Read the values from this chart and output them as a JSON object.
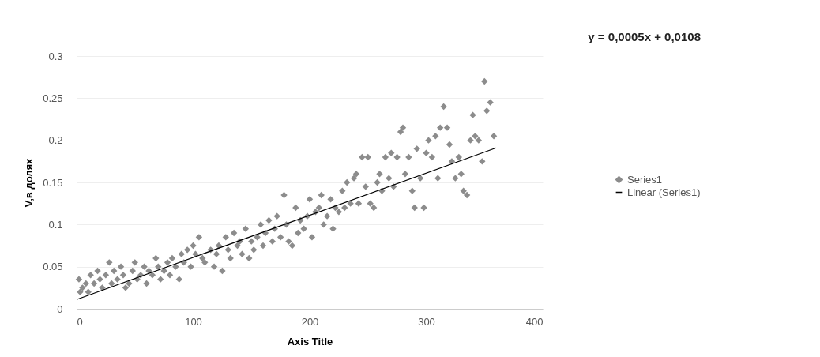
{
  "chart_data": {
    "type": "scatter",
    "xlabel": "Axis Title",
    "ylabel": "V,в долях",
    "annotations": [
      "y = 0,0005x + 0,0108"
    ],
    "xlim": [
      0,
      400
    ],
    "xticks": [
      0,
      100,
      200,
      300,
      400
    ],
    "ylim": [
      0,
      0.3
    ],
    "yticks": [
      0,
      0.05,
      0.1,
      0.15,
      0.2,
      0.25,
      0.3
    ],
    "grid": "y",
    "legend": "right",
    "series": [
      {
        "name": "Series1",
        "color": "#8c8c8c",
        "marker": "diamond",
        "x": [
          2,
          3,
          5,
          8,
          10,
          12,
          15,
          18,
          20,
          22,
          25,
          28,
          30,
          32,
          35,
          38,
          40,
          42,
          45,
          48,
          50,
          52,
          55,
          58,
          60,
          62,
          65,
          68,
          70,
          72,
          75,
          78,
          80,
          82,
          85,
          88,
          90,
          92,
          95,
          98,
          100,
          102,
          105,
          108,
          110,
          115,
          118,
          120,
          122,
          125,
          128,
          130,
          132,
          135,
          138,
          140,
          142,
          145,
          148,
          150,
          152,
          155,
          158,
          160,
          162,
          165,
          168,
          170,
          172,
          175,
          178,
          180,
          182,
          185,
          188,
          190,
          192,
          195,
          198,
          200,
          202,
          205,
          208,
          210,
          212,
          215,
          218,
          220,
          222,
          225,
          228,
          230,
          232,
          235,
          238,
          240,
          242,
          245,
          248,
          250,
          252,
          255,
          258,
          260,
          262,
          265,
          268,
          270,
          272,
          275,
          278,
          280,
          282,
          285,
          288,
          290,
          292,
          295,
          298,
          300,
          302,
          305,
          308,
          310,
          312,
          315,
          318,
          320,
          322,
          325,
          328,
          330,
          332,
          335,
          338,
          340,
          342,
          345,
          348,
          350,
          352,
          355,
          358
        ],
        "values": [
          0.035,
          0.02,
          0.025,
          0.03,
          0.02,
          0.04,
          0.03,
          0.045,
          0.035,
          0.025,
          0.04,
          0.055,
          0.03,
          0.045,
          0.035,
          0.05,
          0.04,
          0.025,
          0.03,
          0.045,
          0.055,
          0.035,
          0.04,
          0.05,
          0.03,
          0.045,
          0.04,
          0.06,
          0.05,
          0.035,
          0.045,
          0.055,
          0.04,
          0.06,
          0.05,
          0.035,
          0.065,
          0.055,
          0.07,
          0.05,
          0.075,
          0.065,
          0.085,
          0.06,
          0.055,
          0.07,
          0.05,
          0.065,
          0.075,
          0.045,
          0.085,
          0.07,
          0.06,
          0.09,
          0.075,
          0.08,
          0.065,
          0.095,
          0.06,
          0.08,
          0.07,
          0.085,
          0.1,
          0.075,
          0.09,
          0.105,
          0.08,
          0.095,
          0.11,
          0.085,
          0.135,
          0.1,
          0.08,
          0.075,
          0.12,
          0.09,
          0.105,
          0.095,
          0.11,
          0.13,
          0.085,
          0.115,
          0.12,
          0.135,
          0.1,
          0.11,
          0.13,
          0.095,
          0.12,
          0.115,
          0.14,
          0.12,
          0.15,
          0.125,
          0.155,
          0.16,
          0.125,
          0.18,
          0.145,
          0.18,
          0.125,
          0.12,
          0.15,
          0.16,
          0.14,
          0.18,
          0.155,
          0.185,
          0.145,
          0.18,
          0.21,
          0.215,
          0.16,
          0.18,
          0.14,
          0.12,
          0.19,
          0.155,
          0.12,
          0.185,
          0.2,
          0.18,
          0.205,
          0.155,
          0.215,
          0.24,
          0.215,
          0.195,
          0.175,
          0.155,
          0.18,
          0.16,
          0.14,
          0.135,
          0.2,
          0.23,
          0.205,
          0.2,
          0.175,
          0.27,
          0.235,
          0.245,
          0.205
        ]
      },
      {
        "name": "Linear (Series1)",
        "type": "line",
        "color": "#000000",
        "line_style": "solid",
        "marker": "none",
        "x": [
          0,
          360
        ],
        "values": [
          0.011,
          0.191
        ]
      }
    ]
  }
}
